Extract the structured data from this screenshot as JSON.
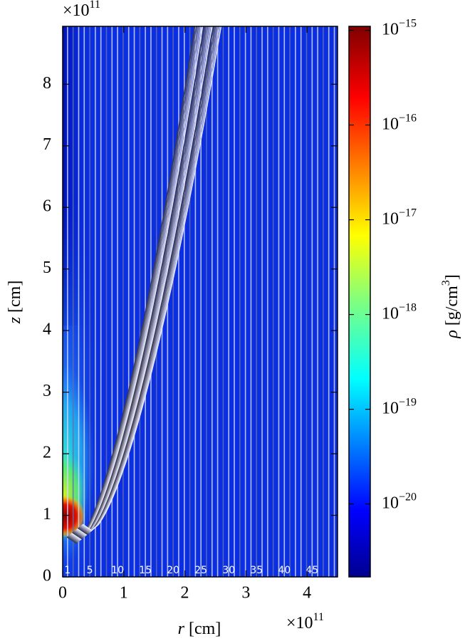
{
  "chart_data": {
    "type": "heatmap",
    "xlabel": {
      "var": "r",
      "rest": " [cm]"
    },
    "ylabel": {
      "var": "z",
      "rest": " [cm]"
    },
    "x_scale": {
      "base": "×10",
      "exponent": "11"
    },
    "y_scale": {
      "base": "×10",
      "exponent": "11"
    },
    "xlim": [
      0,
      4.5
    ],
    "ylim": [
      0,
      8.94
    ],
    "xticks": [
      0,
      1,
      2,
      3,
      4
    ],
    "yticks": [
      0,
      1,
      2,
      3,
      4,
      5,
      6,
      7,
      8
    ],
    "colormap": "jet",
    "colorbar_log": true,
    "clim": [
      1.7e-21,
      1.1e-15
    ],
    "colorbar_label": {
      "var": "ρ",
      "text": " [g/cm",
      "sup": "3",
      "end": "]"
    },
    "cticks": [
      {
        "value": 1e-15,
        "label": "10",
        "exponent": "−15"
      },
      {
        "value": 1e-16,
        "label": "10",
        "exponent": "−16"
      },
      {
        "value": 1e-17,
        "label": "10",
        "exponent": "−17"
      },
      {
        "value": 1e-18,
        "label": "10",
        "exponent": "−18"
      },
      {
        "value": 1e-19,
        "label": "10",
        "exponent": "−19"
      },
      {
        "value": 1e-20,
        "label": "10",
        "exponent": "−20"
      }
    ],
    "streamline_labels": [
      "1",
      "5",
      "10",
      "15",
      "20",
      "25",
      "30",
      "35",
      "40",
      "45"
    ]
  }
}
